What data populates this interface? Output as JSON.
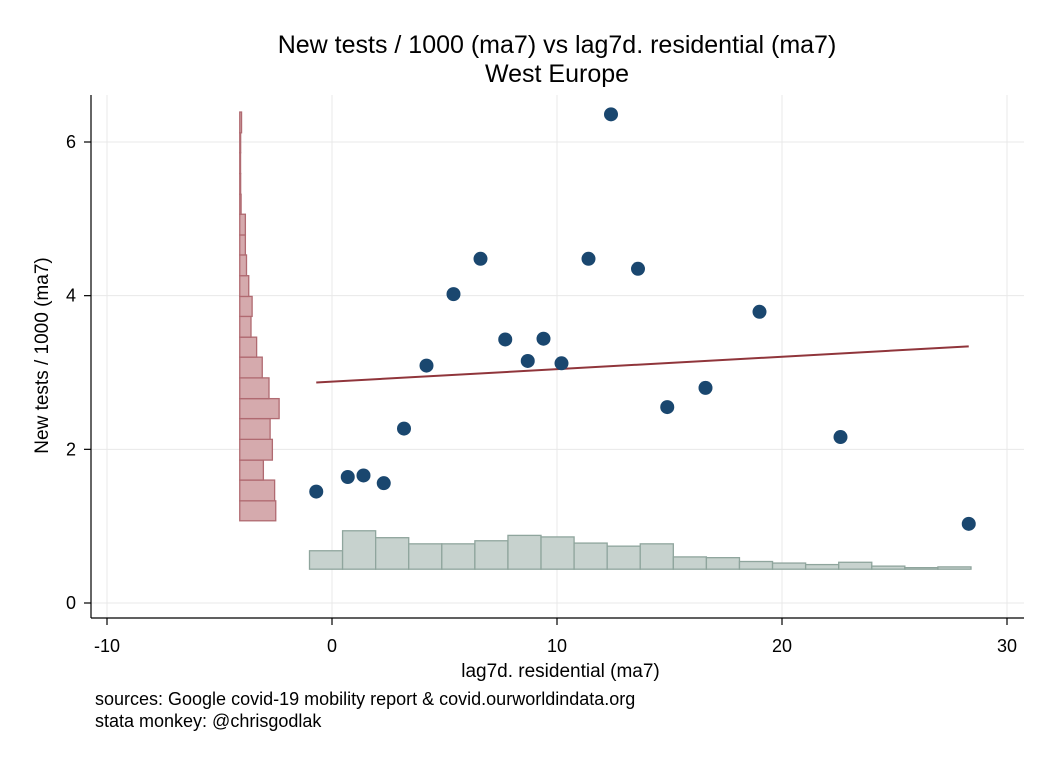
{
  "chart_data": {
    "type": "scatter",
    "title": "New tests / 1000 (ma7) vs lag7d. residential (ma7)",
    "subtitle": "West Europe",
    "xlabel": "lag7d. residential (ma7)",
    "ylabel": "New tests / 1000 (ma7)",
    "xlim": [
      -10.5,
      30.5
    ],
    "ylim": [
      -0.2,
      6.6
    ],
    "xticks": [
      -10,
      0,
      10,
      20,
      30
    ],
    "yticks": [
      0,
      2,
      4,
      6
    ],
    "grid": true,
    "legend": "none",
    "colors": {
      "points": "#1a476f",
      "fit_line": "#90353b",
      "y_hist_fill": "#d5aaad",
      "y_hist_stroke": "#b06a71",
      "x_hist_fill": "#c7d2ce",
      "x_hist_stroke": "#8fa59d",
      "grid": "#e8e8e8"
    },
    "points": [
      {
        "x": -0.7,
        "y": 1.45
      },
      {
        "x": 0.7,
        "y": 1.64
      },
      {
        "x": 1.4,
        "y": 1.66
      },
      {
        "x": 2.3,
        "y": 1.56
      },
      {
        "x": 3.2,
        "y": 2.27
      },
      {
        "x": 4.2,
        "y": 3.09
      },
      {
        "x": 5.4,
        "y": 4.02
      },
      {
        "x": 6.6,
        "y": 4.48
      },
      {
        "x": 7.7,
        "y": 3.43
      },
      {
        "x": 8.7,
        "y": 3.15
      },
      {
        "x": 9.4,
        "y": 3.44
      },
      {
        "x": 10.2,
        "y": 3.12
      },
      {
        "x": 11.4,
        "y": 4.48
      },
      {
        "x": 12.4,
        "y": 6.36
      },
      {
        "x": 13.6,
        "y": 4.35
      },
      {
        "x": 14.9,
        "y": 2.55
      },
      {
        "x": 16.6,
        "y": 2.8
      },
      {
        "x": 19.0,
        "y": 3.79
      },
      {
        "x": 22.6,
        "y": 2.16
      },
      {
        "x": 28.3,
        "y": 1.03
      }
    ],
    "fit_line": {
      "x": [
        -0.7,
        28.3
      ],
      "y": [
        2.87,
        3.34
      ]
    },
    "y_hist": {
      "baseline_x": -4.1,
      "bins": [
        {
          "y0": 1.07,
          "y1": 1.33,
          "len": 1.6
        },
        {
          "y0": 1.33,
          "y1": 1.6,
          "len": 1.55
        },
        {
          "y0": 1.6,
          "y1": 1.86,
          "len": 1.05
        },
        {
          "y0": 1.86,
          "y1": 2.13,
          "len": 1.45
        },
        {
          "y0": 2.13,
          "y1": 2.4,
          "len": 1.35
        },
        {
          "y0": 2.4,
          "y1": 2.66,
          "len": 1.75
        },
        {
          "y0": 2.66,
          "y1": 2.93,
          "len": 1.3
        },
        {
          "y0": 2.93,
          "y1": 3.2,
          "len": 1.0
        },
        {
          "y0": 3.2,
          "y1": 3.46,
          "len": 0.75
        },
        {
          "y0": 3.46,
          "y1": 3.73,
          "len": 0.5
        },
        {
          "y0": 3.73,
          "y1": 3.99,
          "len": 0.55
        },
        {
          "y0": 3.99,
          "y1": 4.26,
          "len": 0.4
        },
        {
          "y0": 4.26,
          "y1": 4.53,
          "len": 0.3
        },
        {
          "y0": 4.53,
          "y1": 4.79,
          "len": 0.25
        },
        {
          "y0": 4.79,
          "y1": 5.06,
          "len": 0.25
        },
        {
          "y0": 5.06,
          "y1": 5.32,
          "len": 0.06
        },
        {
          "y0": 5.32,
          "y1": 5.59,
          "len": 0.04
        },
        {
          "y0": 5.59,
          "y1": 5.86,
          "len": 0.03
        },
        {
          "y0": 5.86,
          "y1": 6.12,
          "len": 0.04
        },
        {
          "y0": 6.12,
          "y1": 6.39,
          "len": 0.08
        }
      ]
    },
    "x_hist": {
      "baseline_y": 0.44,
      "bins": [
        {
          "x0": -1.0,
          "x1": 0.47,
          "h": 0.24
        },
        {
          "x0": 0.47,
          "x1": 1.94,
          "h": 0.5
        },
        {
          "x0": 1.94,
          "x1": 3.41,
          "h": 0.41
        },
        {
          "x0": 3.41,
          "x1": 4.88,
          "h": 0.33
        },
        {
          "x0": 4.88,
          "x1": 6.35,
          "h": 0.33
        },
        {
          "x0": 6.35,
          "x1": 7.82,
          "h": 0.37
        },
        {
          "x0": 7.82,
          "x1": 9.29,
          "h": 0.44
        },
        {
          "x0": 9.29,
          "x1": 10.76,
          "h": 0.42
        },
        {
          "x0": 10.76,
          "x1": 12.23,
          "h": 0.34
        },
        {
          "x0": 12.23,
          "x1": 13.7,
          "h": 0.3
        },
        {
          "x0": 13.7,
          "x1": 15.17,
          "h": 0.33
        },
        {
          "x0": 15.17,
          "x1": 16.64,
          "h": 0.16
        },
        {
          "x0": 16.64,
          "x1": 18.11,
          "h": 0.15
        },
        {
          "x0": 18.11,
          "x1": 19.58,
          "h": 0.1
        },
        {
          "x0": 19.58,
          "x1": 21.05,
          "h": 0.08
        },
        {
          "x0": 21.05,
          "x1": 22.52,
          "h": 0.06
        },
        {
          "x0": 22.52,
          "x1": 23.99,
          "h": 0.09
        },
        {
          "x0": 23.99,
          "x1": 25.46,
          "h": 0.04
        },
        {
          "x0": 25.46,
          "x1": 26.93,
          "h": 0.02
        },
        {
          "x0": 26.93,
          "x1": 28.4,
          "h": 0.03
        }
      ]
    }
  },
  "notes": {
    "line1": "sources: Google covid-19 mobility report & covid.ourworldindata.org",
    "line2": "stata monkey: @chrisgodlak"
  }
}
